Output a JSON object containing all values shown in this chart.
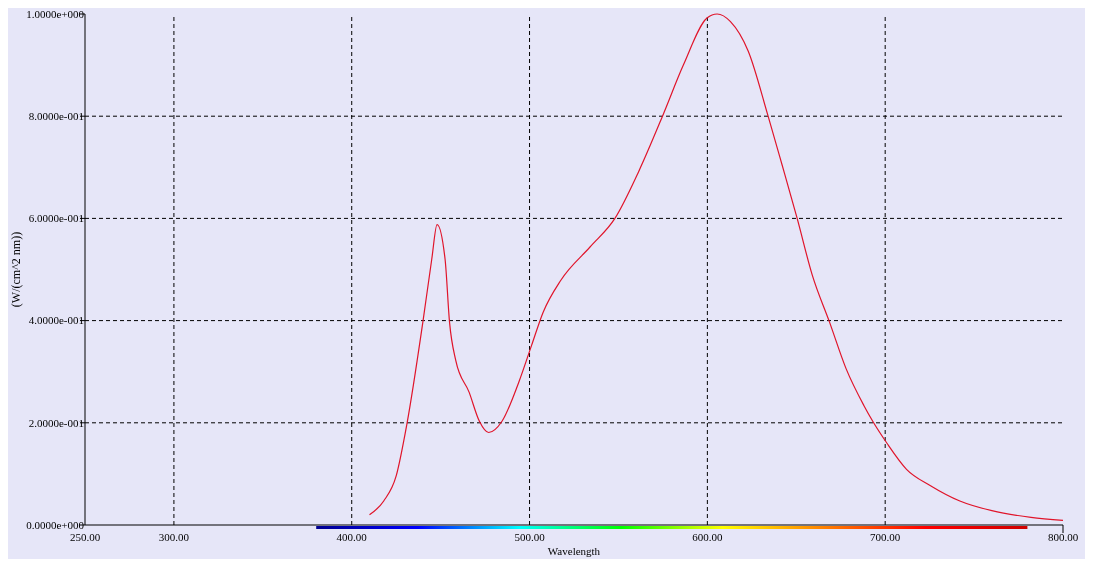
{
  "chart_data": {
    "type": "line",
    "xlabel": "Wavelength",
    "ylabel": "(W/(cm^2 nm))",
    "xlim": [
      250,
      800
    ],
    "xticks": [
      {
        "value": 250,
        "label": "250.00"
      },
      {
        "value": 300,
        "label": "300.00"
      },
      {
        "value": 400,
        "label": "400.00"
      },
      {
        "value": 500,
        "label": "500.00"
      },
      {
        "value": 600,
        "label": "600.00"
      },
      {
        "value": 700,
        "label": "700.00"
      },
      {
        "value": 800,
        "label": "800.00"
      }
    ],
    "ylim": [
      0,
      1
    ],
    "yticks": [
      {
        "value": 0,
        "label": "0.0000e+000"
      },
      {
        "value": 0.2,
        "label": "2.0000e-001"
      },
      {
        "value": 0.4,
        "label": "4.0000e-001"
      },
      {
        "value": 0.6,
        "label": "6.0000e-001"
      },
      {
        "value": 0.8,
        "label": "8.0000e-001"
      },
      {
        "value": 1,
        "label": "1.0000e+000"
      }
    ],
    "grid": true,
    "marker": "none",
    "line_style": "solid",
    "series": [
      {
        "color": "#e0142a",
        "x": [
          410,
          418,
          425,
          431,
          440,
          445,
          448,
          452.5,
          455,
          458.5,
          466,
          471.8,
          477,
          484.5,
          493.8,
          501,
          507.6,
          517.6,
          534,
          548,
          561.4,
          575,
          586.5,
          599.8,
          605.5,
          613,
          623,
          634,
          642,
          650.5,
          659,
          668.7,
          678,
          688,
          693,
          701,
          712,
          725.5,
          742,
          760,
          782,
          800
        ],
        "values": [
          0.02,
          0.047,
          0.096,
          0.197,
          0.397,
          0.52,
          0.588,
          0.52,
          0.397,
          0.322,
          0.26,
          0.203,
          0.181,
          0.203,
          0.278,
          0.35,
          0.416,
          0.479,
          0.544,
          0.6,
          0.692,
          0.802,
          0.9,
          0.992,
          1.0,
          0.985,
          0.927,
          0.802,
          0.705,
          0.6,
          0.489,
          0.397,
          0.306,
          0.234,
          0.203,
          0.16,
          0.109,
          0.077,
          0.047,
          0.028,
          0.015,
          0.009
        ]
      }
    ]
  }
}
